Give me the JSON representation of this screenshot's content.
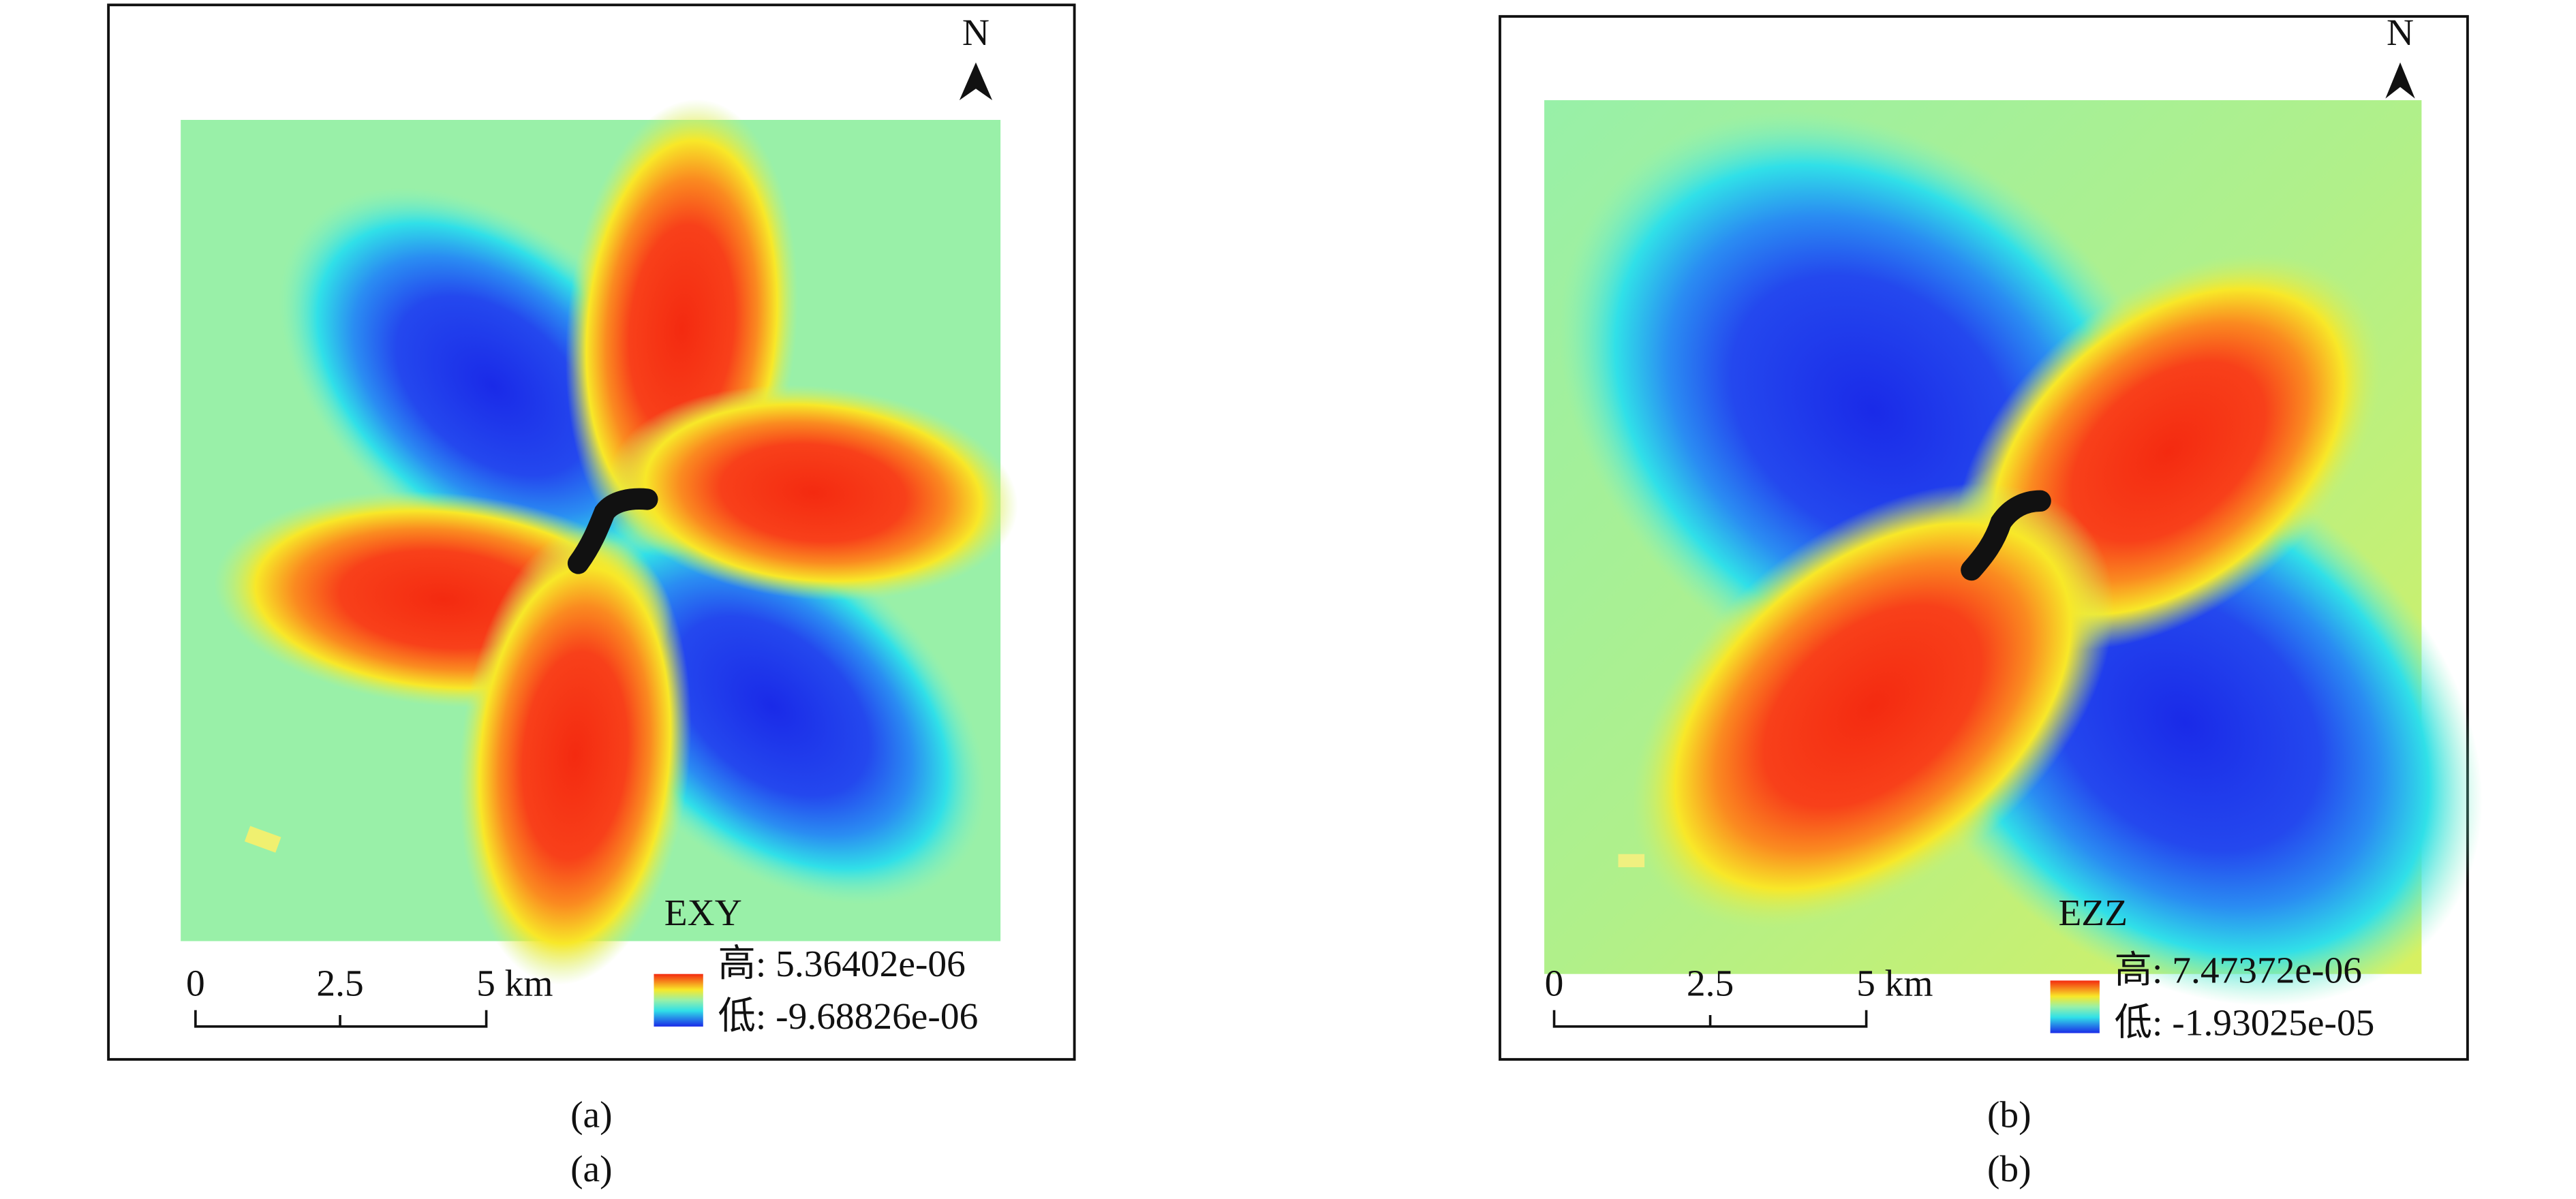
{
  "panels": [
    {
      "north": "N",
      "field": "EXY",
      "high": "高: 5.36402e-06",
      "low": "低: -9.68826e-06",
      "scale": [
        "0",
        "2.5",
        "5 km"
      ],
      "captions": [
        "(a)",
        "(a)"
      ]
    },
    {
      "north": "N",
      "field": "EZZ",
      "high": "高: 7.47372e-06",
      "low": "低: -1.93025e-05",
      "scale": [
        "0",
        "2.5",
        "5 km"
      ],
      "captions": [
        "(b)",
        "(b)"
      ]
    }
  ]
}
